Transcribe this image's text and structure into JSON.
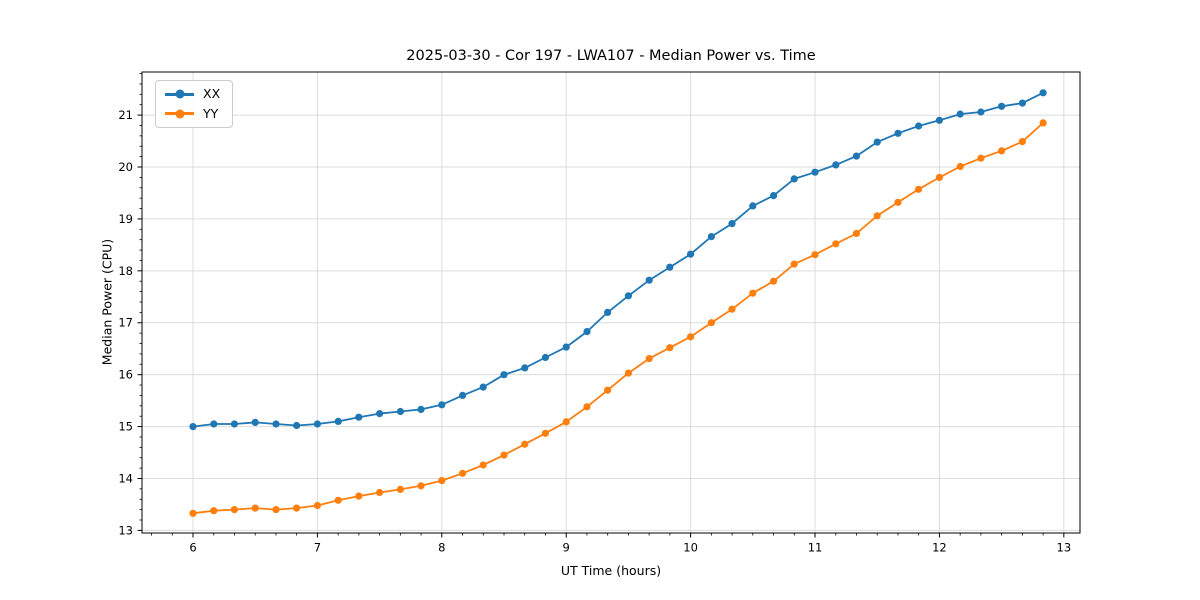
{
  "chart_data": {
    "type": "line",
    "title": "2025-03-30 - Cor 197 - LWA107 - Median Power vs. Time",
    "xlabel": "UT Time (hours)",
    "ylabel": "Median Power (CPU)",
    "xlim": [
      5.59,
      13.13
    ],
    "ylim": [
      12.95,
      21.83
    ],
    "xticks": [
      6,
      7,
      8,
      9,
      10,
      11,
      12,
      13
    ],
    "yticks": [
      13,
      14,
      15,
      16,
      17,
      18,
      19,
      20,
      21
    ],
    "grid": true,
    "grid_color": "#dcdcdc",
    "legend_position": "upper left",
    "marker": "circle",
    "x": [
      6.0,
      6.167,
      6.333,
      6.5,
      6.667,
      6.833,
      7.0,
      7.167,
      7.333,
      7.5,
      7.667,
      7.833,
      8.0,
      8.167,
      8.333,
      8.5,
      8.667,
      8.833,
      9.0,
      9.167,
      9.333,
      9.5,
      9.667,
      9.833,
      10.0,
      10.167,
      10.333,
      10.5,
      10.667,
      10.833,
      11.0,
      11.167,
      11.333,
      11.5,
      11.667,
      11.833,
      12.0,
      12.167,
      12.333,
      12.5,
      12.667,
      12.833
    ],
    "series": [
      {
        "name": "XX",
        "color": "#1f77b4",
        "values": [
          15.0,
          15.05,
          15.05,
          15.08,
          15.05,
          15.02,
          15.05,
          15.1,
          15.18,
          15.25,
          15.29,
          15.33,
          15.42,
          15.6,
          15.76,
          16.0,
          16.13,
          16.33,
          16.53,
          16.83,
          17.2,
          17.52,
          17.82,
          18.07,
          18.32,
          18.66,
          18.91,
          19.25,
          19.45,
          19.77,
          19.9,
          20.04,
          20.21,
          20.48,
          20.65,
          20.79,
          20.9,
          21.02,
          21.06,
          21.17,
          21.23,
          21.43
        ]
      },
      {
        "name": "YY",
        "color": "#ff7f0e",
        "values": [
          13.33,
          13.38,
          13.4,
          13.43,
          13.4,
          13.43,
          13.48,
          13.58,
          13.66,
          13.73,
          13.79,
          13.86,
          13.96,
          14.1,
          14.26,
          14.45,
          14.66,
          14.87,
          15.09,
          15.38,
          15.7,
          16.03,
          16.31,
          16.52,
          16.73,
          17.0,
          17.26,
          17.57,
          17.8,
          18.13,
          18.31,
          18.52,
          18.72,
          19.06,
          19.32,
          19.57,
          19.8,
          20.01,
          20.17,
          20.31,
          20.49,
          20.85
        ]
      }
    ]
  }
}
